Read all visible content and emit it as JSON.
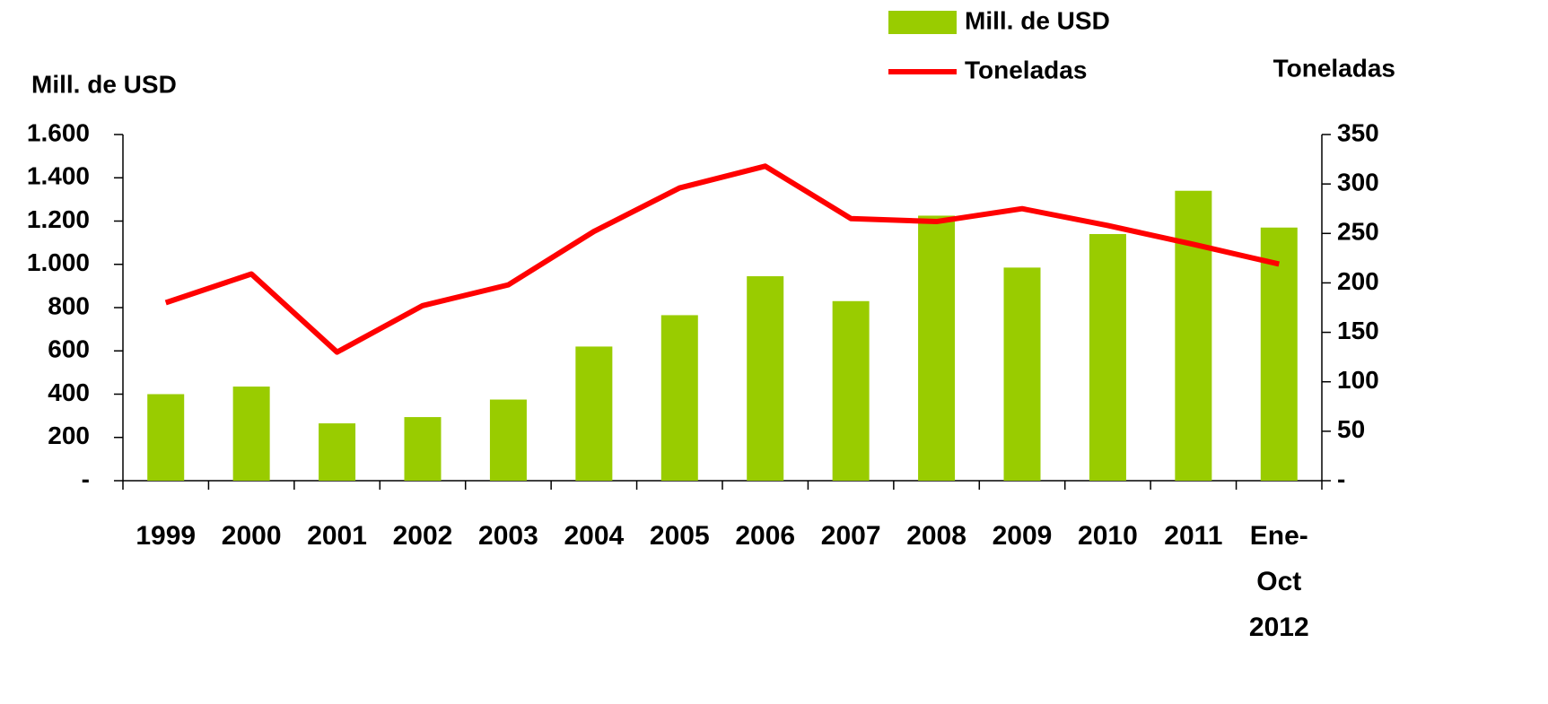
{
  "chart_data": {
    "type": "bar+line",
    "categories": [
      "1999",
      "2000",
      "2001",
      "2002",
      "2003",
      "2004",
      "2005",
      "2006",
      "2007",
      "2008",
      "2009",
      "2010",
      "2011",
      "Ene-Oct 2012"
    ],
    "y_label": "Mill. de USD",
    "y2_label": "Toneladas",
    "series": [
      {
        "name": "Mill. de USD",
        "type": "bar",
        "color": "#99cc00",
        "values": [
          400,
          435,
          265,
          294,
          375,
          620,
          765,
          945,
          830,
          1225,
          985,
          1140,
          1340,
          1170
        ]
      },
      {
        "name": "Toneladas",
        "type": "line",
        "axis": "y2",
        "color": "#ff0000",
        "values": [
          180,
          209,
          130,
          177,
          198,
          252,
          296,
          318,
          265,
          262,
          275,
          258,
          239,
          219
        ]
      }
    ],
    "ylim": [
      0,
      1600
    ],
    "yticks": [
      {
        "value": 0,
        "label": "-"
      },
      200,
      400,
      600,
      800,
      {
        "value": 1000,
        "label": "1.000"
      },
      {
        "value": 1200,
        "label": "1.200"
      },
      {
        "value": 1400,
        "label": "1.400"
      },
      {
        "value": 1600,
        "label": "1.600"
      }
    ],
    "y2lim": [
      0,
      350
    ],
    "y2ticks": [
      {
        "value": 0,
        "label": "-"
      },
      50,
      100,
      150,
      200,
      250,
      300,
      350
    ],
    "grid": false,
    "legend": "top-right"
  }
}
